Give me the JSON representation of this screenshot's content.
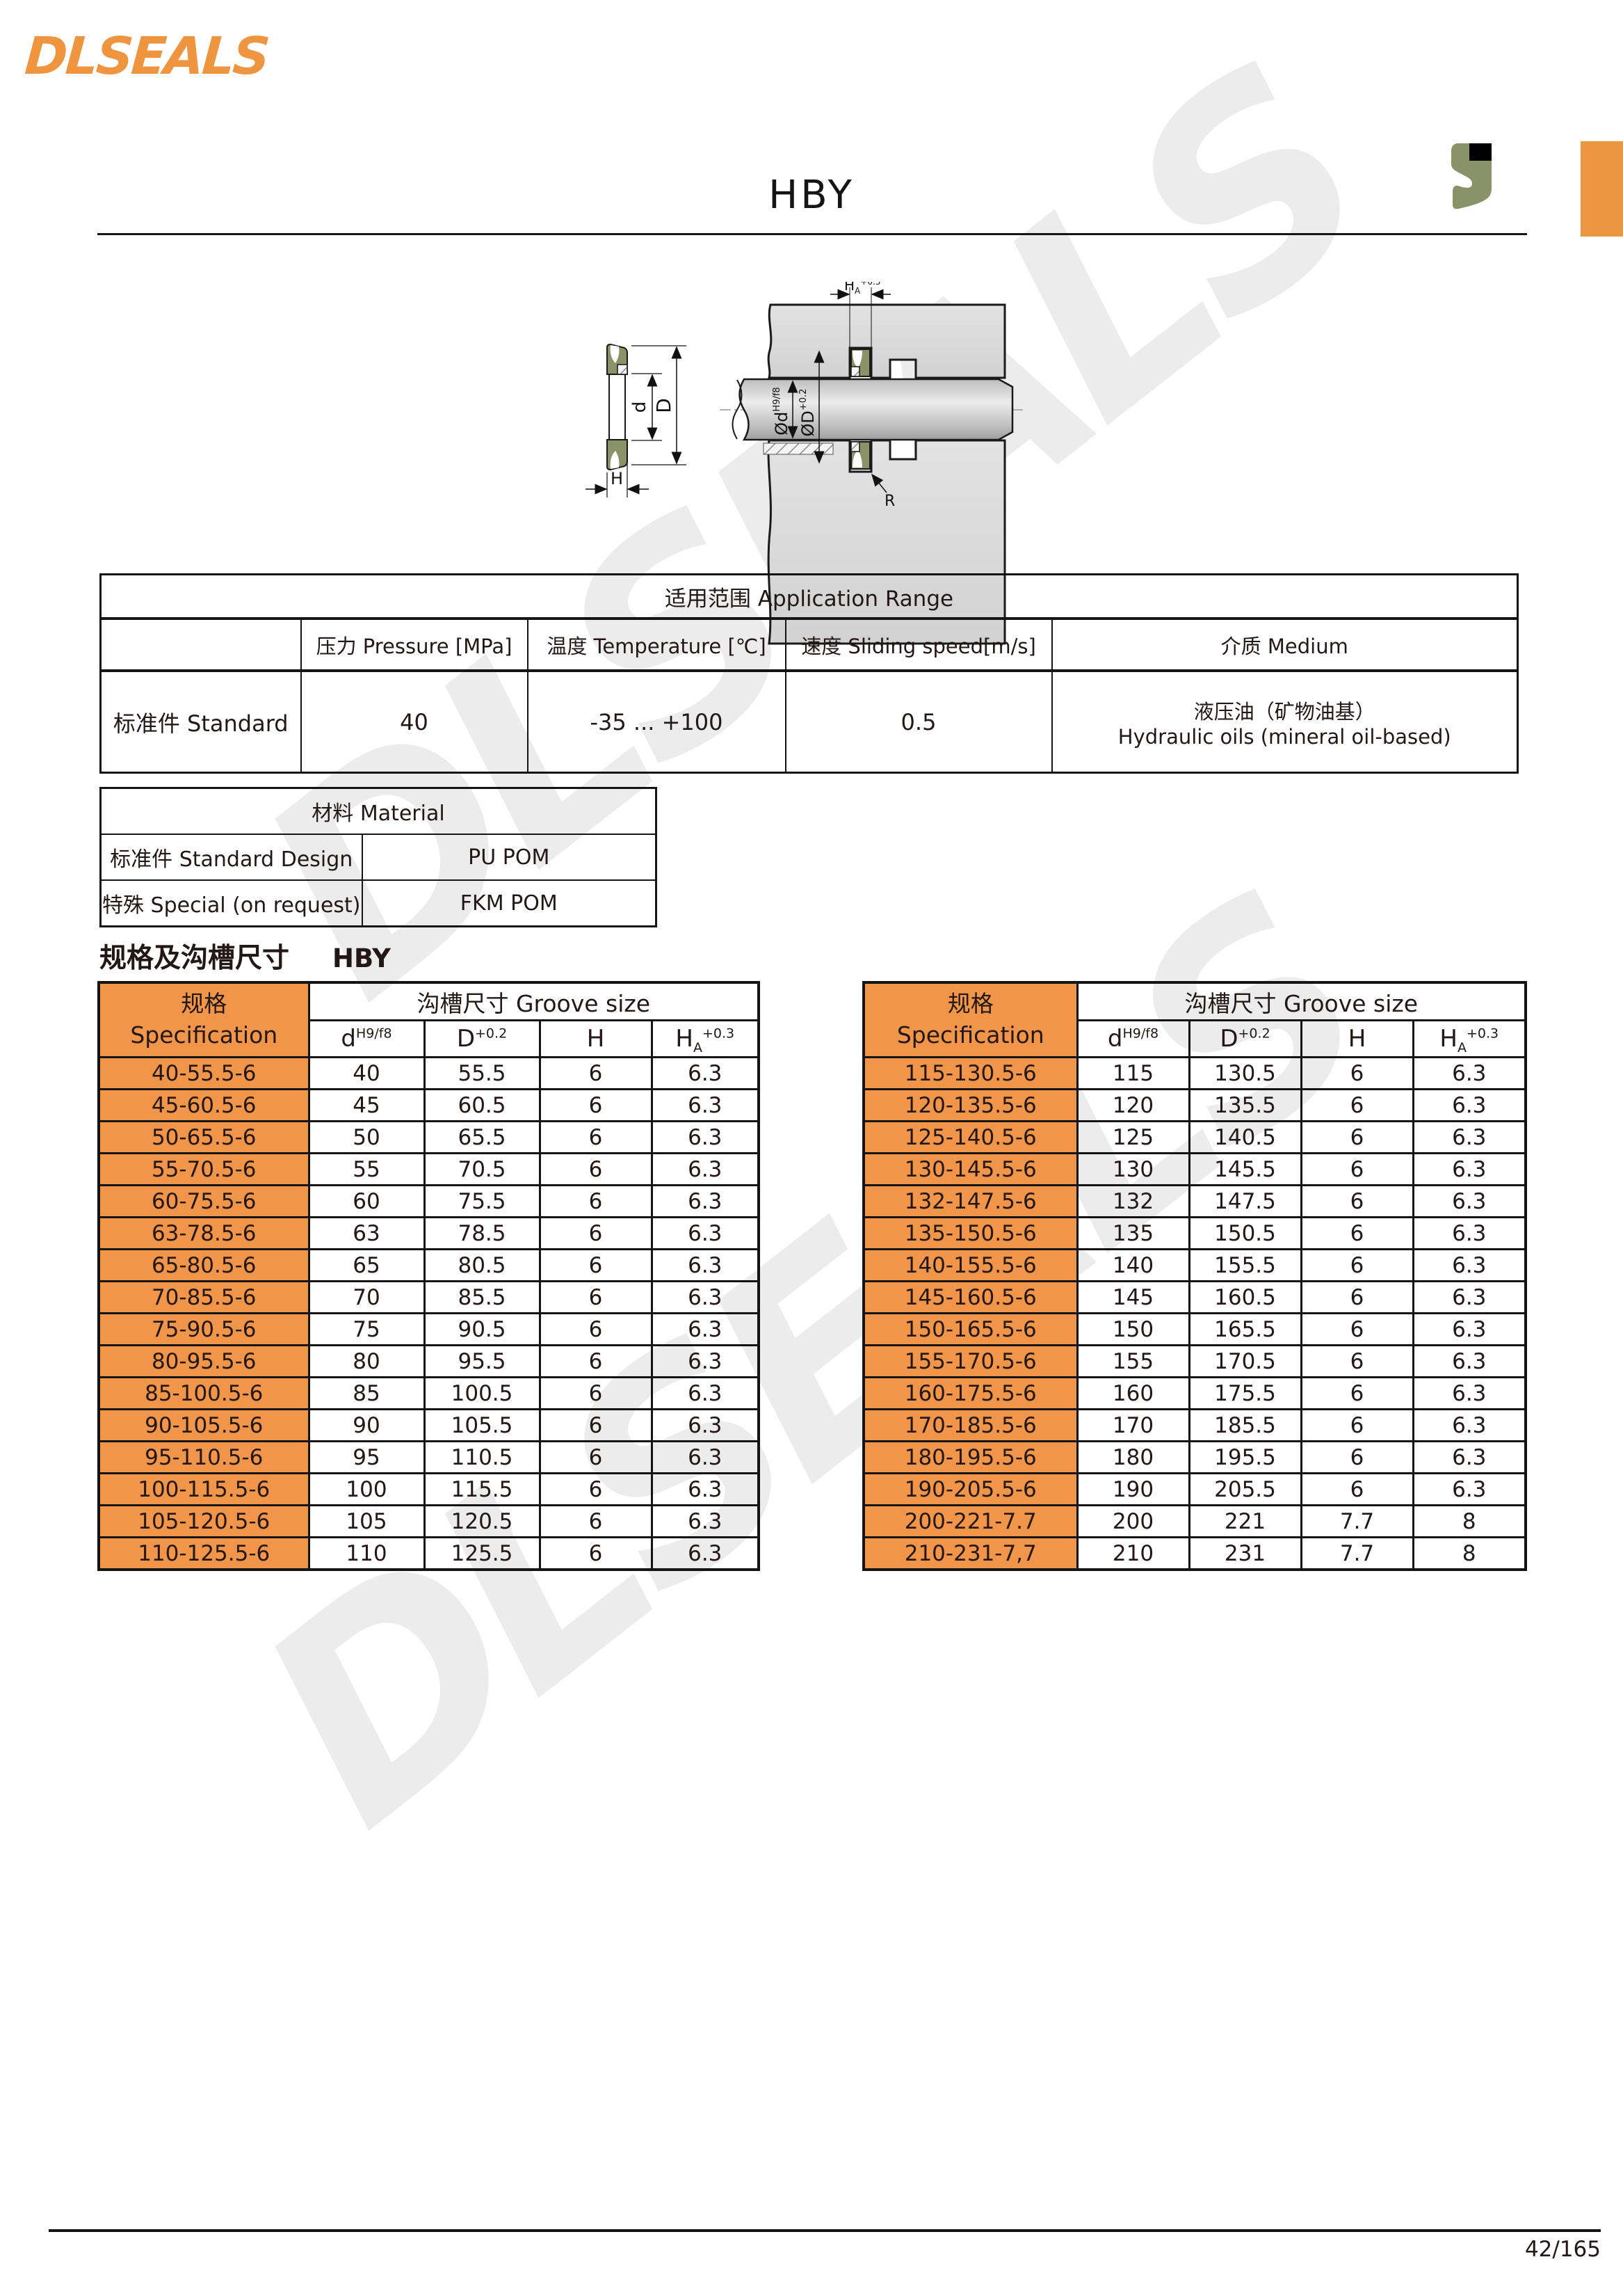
{
  "page": {
    "logo": "DLSEALS",
    "title": "HBY",
    "watermark": "DLSEALS",
    "page_number": "42/165",
    "spec_heading": "规格及沟槽尺寸",
    "spec_heading_code": "HBY"
  },
  "colors": {
    "accent_orange": "#f0954a",
    "logo_orange": "#f0953f",
    "seal_olive": "#8a9368",
    "watermark_gray": "#ececec"
  },
  "application_range": {
    "title": "适用范围 Application Range",
    "col_pressure": "压力 Pressure [MPa]",
    "col_temperature": "温度 Temperature [℃]",
    "col_speed": "速度 Sliding speed[m/s]",
    "col_medium": "介质 Medium",
    "row_label": "标准件 Standard",
    "pressure": "40",
    "temperature": "-35 ... +100",
    "speed": "0.5",
    "medium_cn": "液压油（矿物油基）",
    "medium_en": "Hydraulic oils (mineral oil-based)"
  },
  "material": {
    "title": "材料 Material",
    "rows": [
      [
        "标准件 Standard Design",
        "PU POM"
      ],
      [
        "特殊 Special (on request)",
        "FKM POM"
      ]
    ]
  },
  "spec_tables": {
    "spec_header_cn": "规格",
    "spec_header_en": "Specification",
    "groove_header": "沟槽尺寸 Groove size",
    "sub_headers": [
      {
        "base": "d",
        "sub": "",
        "sup": "H9/f8"
      },
      {
        "base": "D",
        "sub": "",
        "sup": "+0.2"
      },
      {
        "base": "H",
        "sub": "",
        "sup": ""
      },
      {
        "base": "H",
        "sub": "A",
        "sup": "+0.3"
      }
    ],
    "left_rows": [
      [
        "40-55.5-6",
        "40",
        "55.5",
        "6",
        "6.3"
      ],
      [
        "45-60.5-6",
        "45",
        "60.5",
        "6",
        "6.3"
      ],
      [
        "50-65.5-6",
        "50",
        "65.5",
        "6",
        "6.3"
      ],
      [
        "55-70.5-6",
        "55",
        "70.5",
        "6",
        "6.3"
      ],
      [
        "60-75.5-6",
        "60",
        "75.5",
        "6",
        "6.3"
      ],
      [
        "63-78.5-6",
        "63",
        "78.5",
        "6",
        "6.3"
      ],
      [
        "65-80.5-6",
        "65",
        "80.5",
        "6",
        "6.3"
      ],
      [
        "70-85.5-6",
        "70",
        "85.5",
        "6",
        "6.3"
      ],
      [
        "75-90.5-6",
        "75",
        "90.5",
        "6",
        "6.3"
      ],
      [
        "80-95.5-6",
        "80",
        "95.5",
        "6",
        "6.3"
      ],
      [
        "85-100.5-6",
        "85",
        "100.5",
        "6",
        "6.3"
      ],
      [
        "90-105.5-6",
        "90",
        "105.5",
        "6",
        "6.3"
      ],
      [
        "95-110.5-6",
        "95",
        "110.5",
        "6",
        "6.3"
      ],
      [
        "100-115.5-6",
        "100",
        "115.5",
        "6",
        "6.3"
      ],
      [
        "105-120.5-6",
        "105",
        "120.5",
        "6",
        "6.3"
      ],
      [
        "110-125.5-6",
        "110",
        "125.5",
        "6",
        "6.3"
      ]
    ],
    "right_rows": [
      [
        "115-130.5-6",
        "115",
        "130.5",
        "6",
        "6.3"
      ],
      [
        "120-135.5-6",
        "120",
        "135.5",
        "6",
        "6.3"
      ],
      [
        "125-140.5-6",
        "125",
        "140.5",
        "6",
        "6.3"
      ],
      [
        "130-145.5-6",
        "130",
        "145.5",
        "6",
        "6.3"
      ],
      [
        "132-147.5-6",
        "132",
        "147.5",
        "6",
        "6.3"
      ],
      [
        "135-150.5-6",
        "135",
        "150.5",
        "6",
        "6.3"
      ],
      [
        "140-155.5-6",
        "140",
        "155.5",
        "6",
        "6.3"
      ],
      [
        "145-160.5-6",
        "145",
        "160.5",
        "6",
        "6.3"
      ],
      [
        "150-165.5-6",
        "150",
        "165.5",
        "6",
        "6.3"
      ],
      [
        "155-170.5-6",
        "155",
        "170.5",
        "6",
        "6.3"
      ],
      [
        "160-175.5-6",
        "160",
        "175.5",
        "6",
        "6.3"
      ],
      [
        "170-185.5-6",
        "170",
        "185.5",
        "6",
        "6.3"
      ],
      [
        "180-195.5-6",
        "180",
        "195.5",
        "6",
        "6.3"
      ],
      [
        "190-205.5-6",
        "190",
        "205.5",
        "6",
        "6.3"
      ],
      [
        "200-221-7.7",
        "200",
        "221",
        "7.7",
        "8"
      ],
      [
        "210-231-7,7",
        "210",
        "231",
        "7.7",
        "8"
      ]
    ]
  },
  "diagram": {
    "label_d": "d",
    "label_D": "D",
    "label_H": "H",
    "label_ha_base": "H",
    "label_ha_sub": "A",
    "label_ha_sup": "+0.3",
    "label_od_base": "Ød",
    "label_od_sup": "H9/f8",
    "label_oD_base": "ØD",
    "label_oD_sup": "+0.2",
    "label_r": "R"
  }
}
